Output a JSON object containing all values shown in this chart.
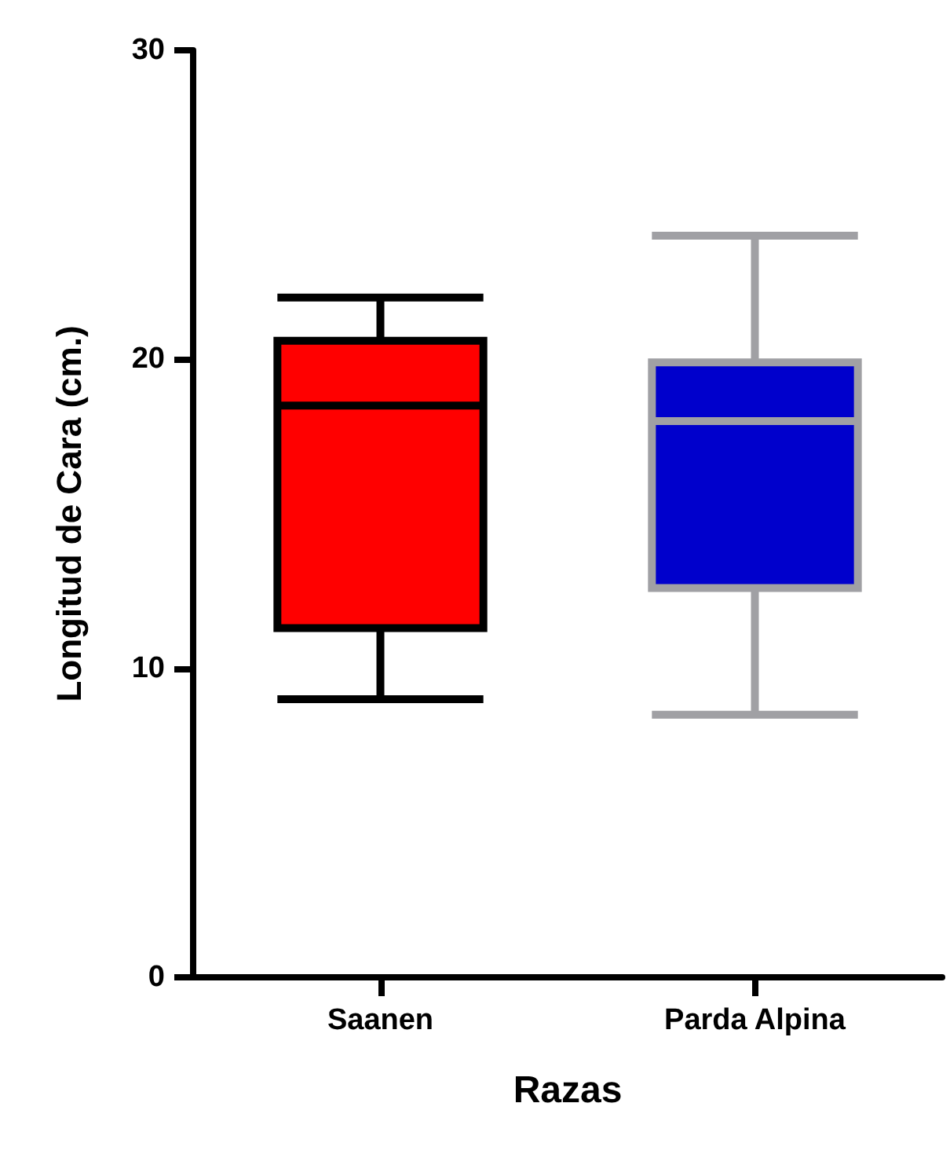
{
  "chart_data": {
    "type": "box",
    "xlabel": "Razas",
    "ylabel": "Longitud de Cara (cm.)",
    "categories": [
      "Saanen",
      "Parda Alpina"
    ],
    "boxes": [
      {
        "low": 9,
        "q1": 11.3,
        "median": 18.5,
        "q3": 20.6,
        "high": 22
      },
      {
        "low": 8.5,
        "q1": 12.6,
        "median": 18,
        "q3": 19.9,
        "high": 24
      }
    ],
    "colors": [
      "#ff0000",
      "#0000cc"
    ],
    "ylim": [
      0,
      30
    ],
    "yticks": [
      0,
      10,
      20,
      30
    ],
    "grid": false
  }
}
